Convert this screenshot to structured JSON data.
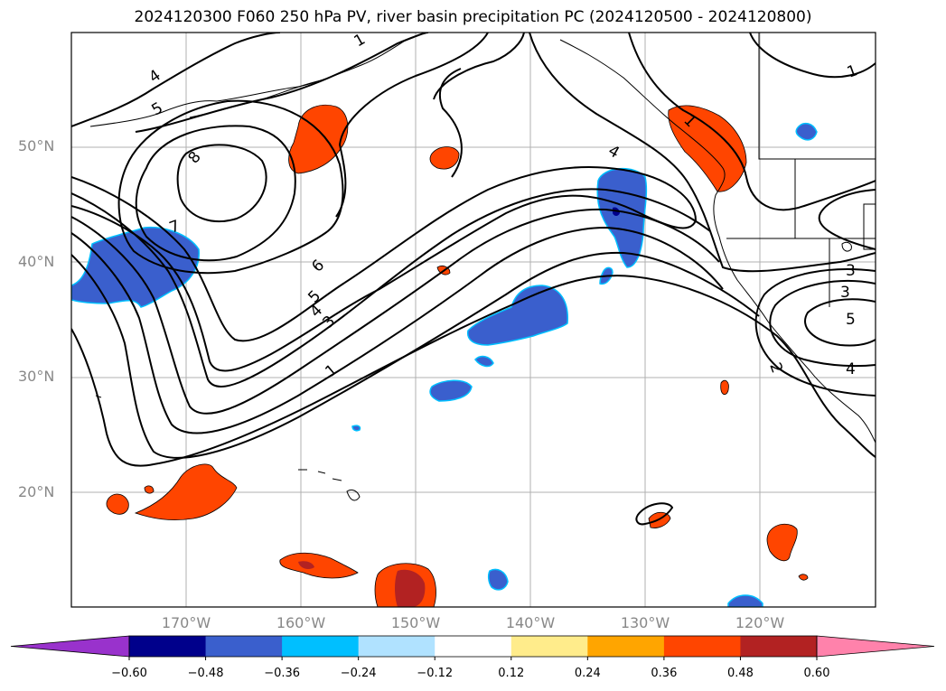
{
  "title": "2024120300 F060 250 hPa PV, river basin precipitation PC (2024120500 - 2024120800)",
  "map": {
    "projection": "lat-lon",
    "lat_labels": [
      "50°N",
      "40°N",
      "30°N",
      "20°N"
    ],
    "lon_labels": [
      "170°W",
      "160°W",
      "150°W",
      "140°W",
      "130°W",
      "120°W"
    ],
    "contour_labels": [
      "4",
      "5",
      "8",
      "7",
      "6",
      "5",
      "4",
      "3",
      "1",
      "1",
      "4",
      "1",
      "1",
      "3",
      "5",
      "2",
      "4"
    ],
    "positive_color": "#ff4500",
    "negative_color": "#3a5fcd",
    "contour_color": "#000000"
  },
  "colorbar": {
    "ticks": [
      "−0.60",
      "−0.48",
      "−0.36",
      "−0.24",
      "−0.12",
      "0.12",
      "0.24",
      "0.36",
      "0.48",
      "0.60"
    ],
    "colors": [
      "#9932cc",
      "#00008b",
      "#3a5fcd",
      "#00bfff",
      "#b0e2ff",
      "#ffffff",
      "#ffec8b",
      "#ffa500",
      "#ff4500",
      "#b22222",
      "#ff82ab"
    ]
  }
}
